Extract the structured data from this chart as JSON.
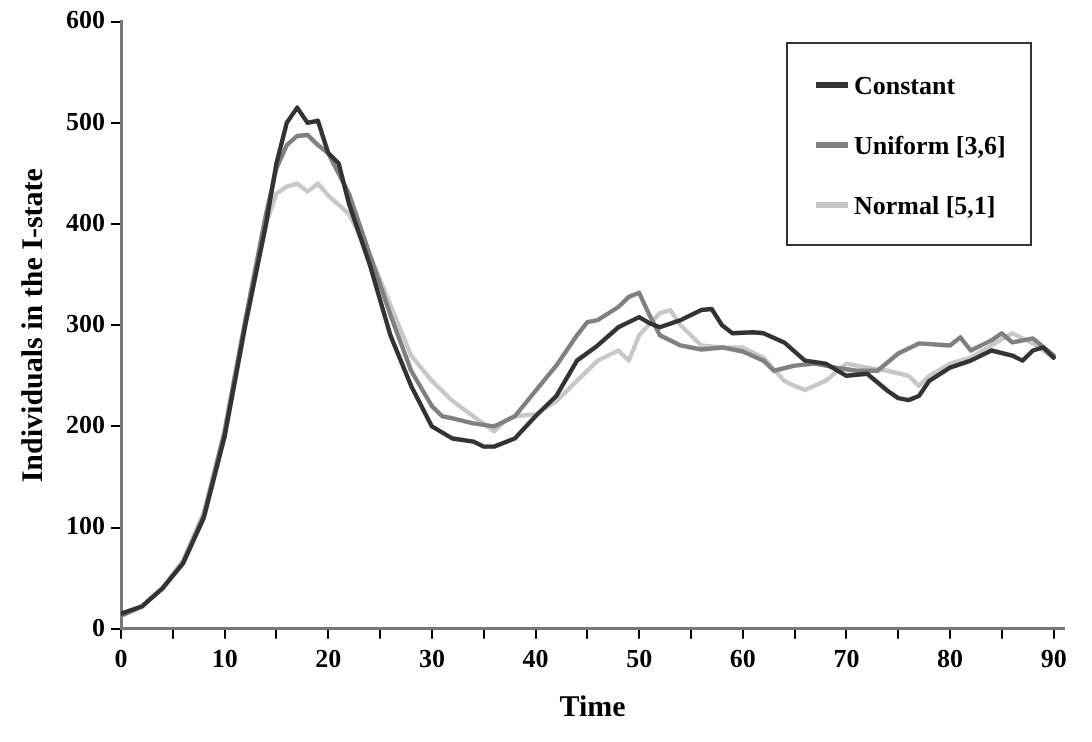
{
  "chart_data": {
    "type": "line",
    "xlabel": "Time",
    "ylabel": "Individuals in the I-state",
    "xlim": [
      0,
      91
    ],
    "ylim": [
      0,
      600
    ],
    "xticks": [
      0,
      {
        "value": 5,
        "label": null
      },
      10,
      {
        "value": 15,
        "label": null
      },
      20,
      {
        "value": 25,
        "label": null
      },
      30,
      {
        "value": 35,
        "label": null
      },
      40,
      {
        "value": 45,
        "label": null
      },
      50,
      {
        "value": 55,
        "label": null
      },
      60,
      {
        "value": 65,
        "label": null
      },
      70,
      {
        "value": 75,
        "label": null
      },
      80,
      {
        "value": 85,
        "label": null
      },
      90
    ],
    "yticks": [
      0,
      100,
      200,
      300,
      400,
      500,
      600
    ],
    "grid": false,
    "legend": "top right",
    "marker": "none",
    "line_style": "solid",
    "series": [
      {
        "name": "Constant",
        "color": "#333333",
        "x": [
          0,
          2,
          4,
          6,
          8,
          10,
          12,
          14,
          15,
          16,
          17,
          18,
          19,
          20,
          21,
          22,
          24,
          26,
          28,
          29,
          30,
          32,
          34,
          35,
          36,
          38,
          40,
          42,
          44,
          46,
          48,
          50,
          51,
          52,
          54,
          56,
          57,
          58,
          59,
          61,
          62,
          64,
          66,
          68,
          70,
          72,
          74,
          75,
          76,
          77,
          78,
          80,
          82,
          84,
          86,
          87,
          88,
          89,
          90
        ],
        "values": [
          15,
          22,
          40,
          65,
          110,
          190,
          300,
          400,
          460,
          500,
          515,
          500,
          502,
          470,
          460,
          420,
          360,
          290,
          240,
          220,
          200,
          188,
          185,
          180,
          180,
          188,
          210,
          230,
          265,
          280,
          298,
          308,
          302,
          298,
          305,
          315,
          316,
          300,
          292,
          293,
          292,
          283,
          265,
          262,
          250,
          252,
          235,
          228,
          226,
          230,
          245,
          258,
          265,
          275,
          270,
          265,
          275,
          278,
          268
        ]
      },
      {
        "name": "Uniform [3,6]",
        "color": "#808080",
        "x": [
          0,
          2,
          4,
          6,
          8,
          10,
          12,
          14,
          15,
          16,
          17,
          18,
          19,
          20,
          22,
          24,
          26,
          28,
          30,
          31,
          32,
          34,
          36,
          38,
          40,
          42,
          44,
          45,
          46,
          48,
          49,
          50,
          51,
          52,
          54,
          56,
          58,
          60,
          62,
          63,
          65,
          67,
          69,
          71,
          73,
          75,
          77,
          80,
          81,
          82,
          84,
          85,
          86,
          88,
          90
        ],
        "values": [
          13,
          22,
          40,
          65,
          112,
          195,
          305,
          410,
          455,
          478,
          487,
          488,
          478,
          470,
          430,
          370,
          310,
          255,
          220,
          210,
          208,
          203,
          200,
          210,
          235,
          260,
          290,
          303,
          305,
          318,
          328,
          332,
          310,
          290,
          280,
          276,
          278,
          274,
          265,
          255,
          260,
          262,
          258,
          255,
          255,
          272,
          282,
          280,
          288,
          275,
          285,
          292,
          283,
          287,
          270
        ]
      },
      {
        "name": "Normal [5,1]",
        "color": "#c8c8c8",
        "x": [
          0,
          2,
          4,
          6,
          8,
          10,
          12,
          14,
          15,
          16,
          17,
          18,
          19,
          20,
          22,
          24,
          26,
          28,
          30,
          32,
          34,
          36,
          37,
          38,
          40,
          42,
          44,
          46,
          48,
          49,
          50,
          52,
          53,
          54,
          56,
          58,
          60,
          62,
          64,
          65,
          66,
          68,
          70,
          72,
          74,
          76,
          77,
          78,
          80,
          82,
          84,
          86,
          88,
          90
        ],
        "values": [
          13,
          22,
          40,
          68,
          115,
          195,
          305,
          400,
          430,
          437,
          440,
          432,
          440,
          428,
          410,
          370,
          320,
          270,
          245,
          225,
          210,
          195,
          205,
          210,
          212,
          225,
          245,
          265,
          275,
          265,
          290,
          312,
          315,
          300,
          280,
          278,
          278,
          268,
          245,
          240,
          236,
          245,
          262,
          258,
          255,
          250,
          240,
          250,
          262,
          268,
          280,
          292,
          282,
          268
        ]
      }
    ]
  }
}
